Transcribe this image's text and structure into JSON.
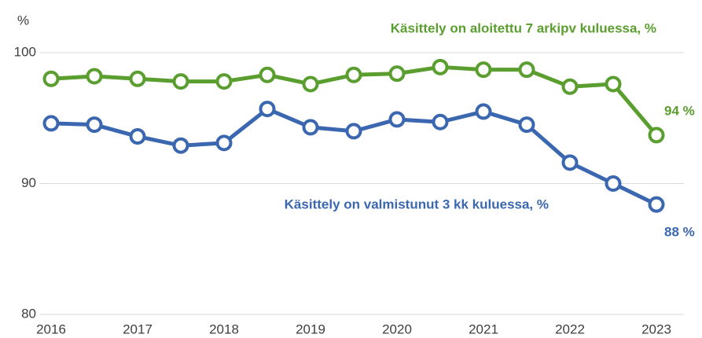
{
  "chart_data": {
    "type": "line",
    "y_unit_label": "%",
    "x": [
      2016,
      2016.5,
      2017,
      2017.5,
      2018,
      2018.5,
      2019,
      2019.5,
      2020,
      2020.5,
      2021,
      2021.5,
      2022,
      2022.5,
      2023
    ],
    "xlim": [
      2016,
      2023
    ],
    "xticks": [
      2016,
      2017,
      2018,
      2019,
      2020,
      2021,
      2022,
      2023
    ],
    "ylim": [
      80,
      100
    ],
    "yticks": [
      80,
      90,
      100
    ],
    "grid": true,
    "series": [
      {
        "name": "Käsittely on aloitettu 7 arkipv kuluessa, %",
        "color": "#5a9e2f",
        "values": [
          98.0,
          98.2,
          98.0,
          97.8,
          97.8,
          98.3,
          97.6,
          98.3,
          98.4,
          98.9,
          98.7,
          98.7,
          97.4,
          97.6,
          93.7
        ],
        "value_labels": [
          null,
          null,
          null,
          null,
          null,
          null,
          null,
          null,
          null,
          null,
          null,
          null,
          null,
          null,
          "94 %"
        ]
      },
      {
        "name": "Käsittely on valmistunut 3 kk kuluessa, %",
        "color": "#3a67b0",
        "values": [
          94.6,
          94.5,
          93.6,
          92.9,
          93.1,
          95.7,
          94.3,
          94.0,
          94.9,
          94.7,
          95.5,
          94.5,
          91.6,
          90.0,
          88.4
        ],
        "value_labels": [
          null,
          null,
          null,
          null,
          null,
          null,
          null,
          null,
          null,
          null,
          null,
          null,
          null,
          null,
          "88 %"
        ]
      }
    ]
  }
}
